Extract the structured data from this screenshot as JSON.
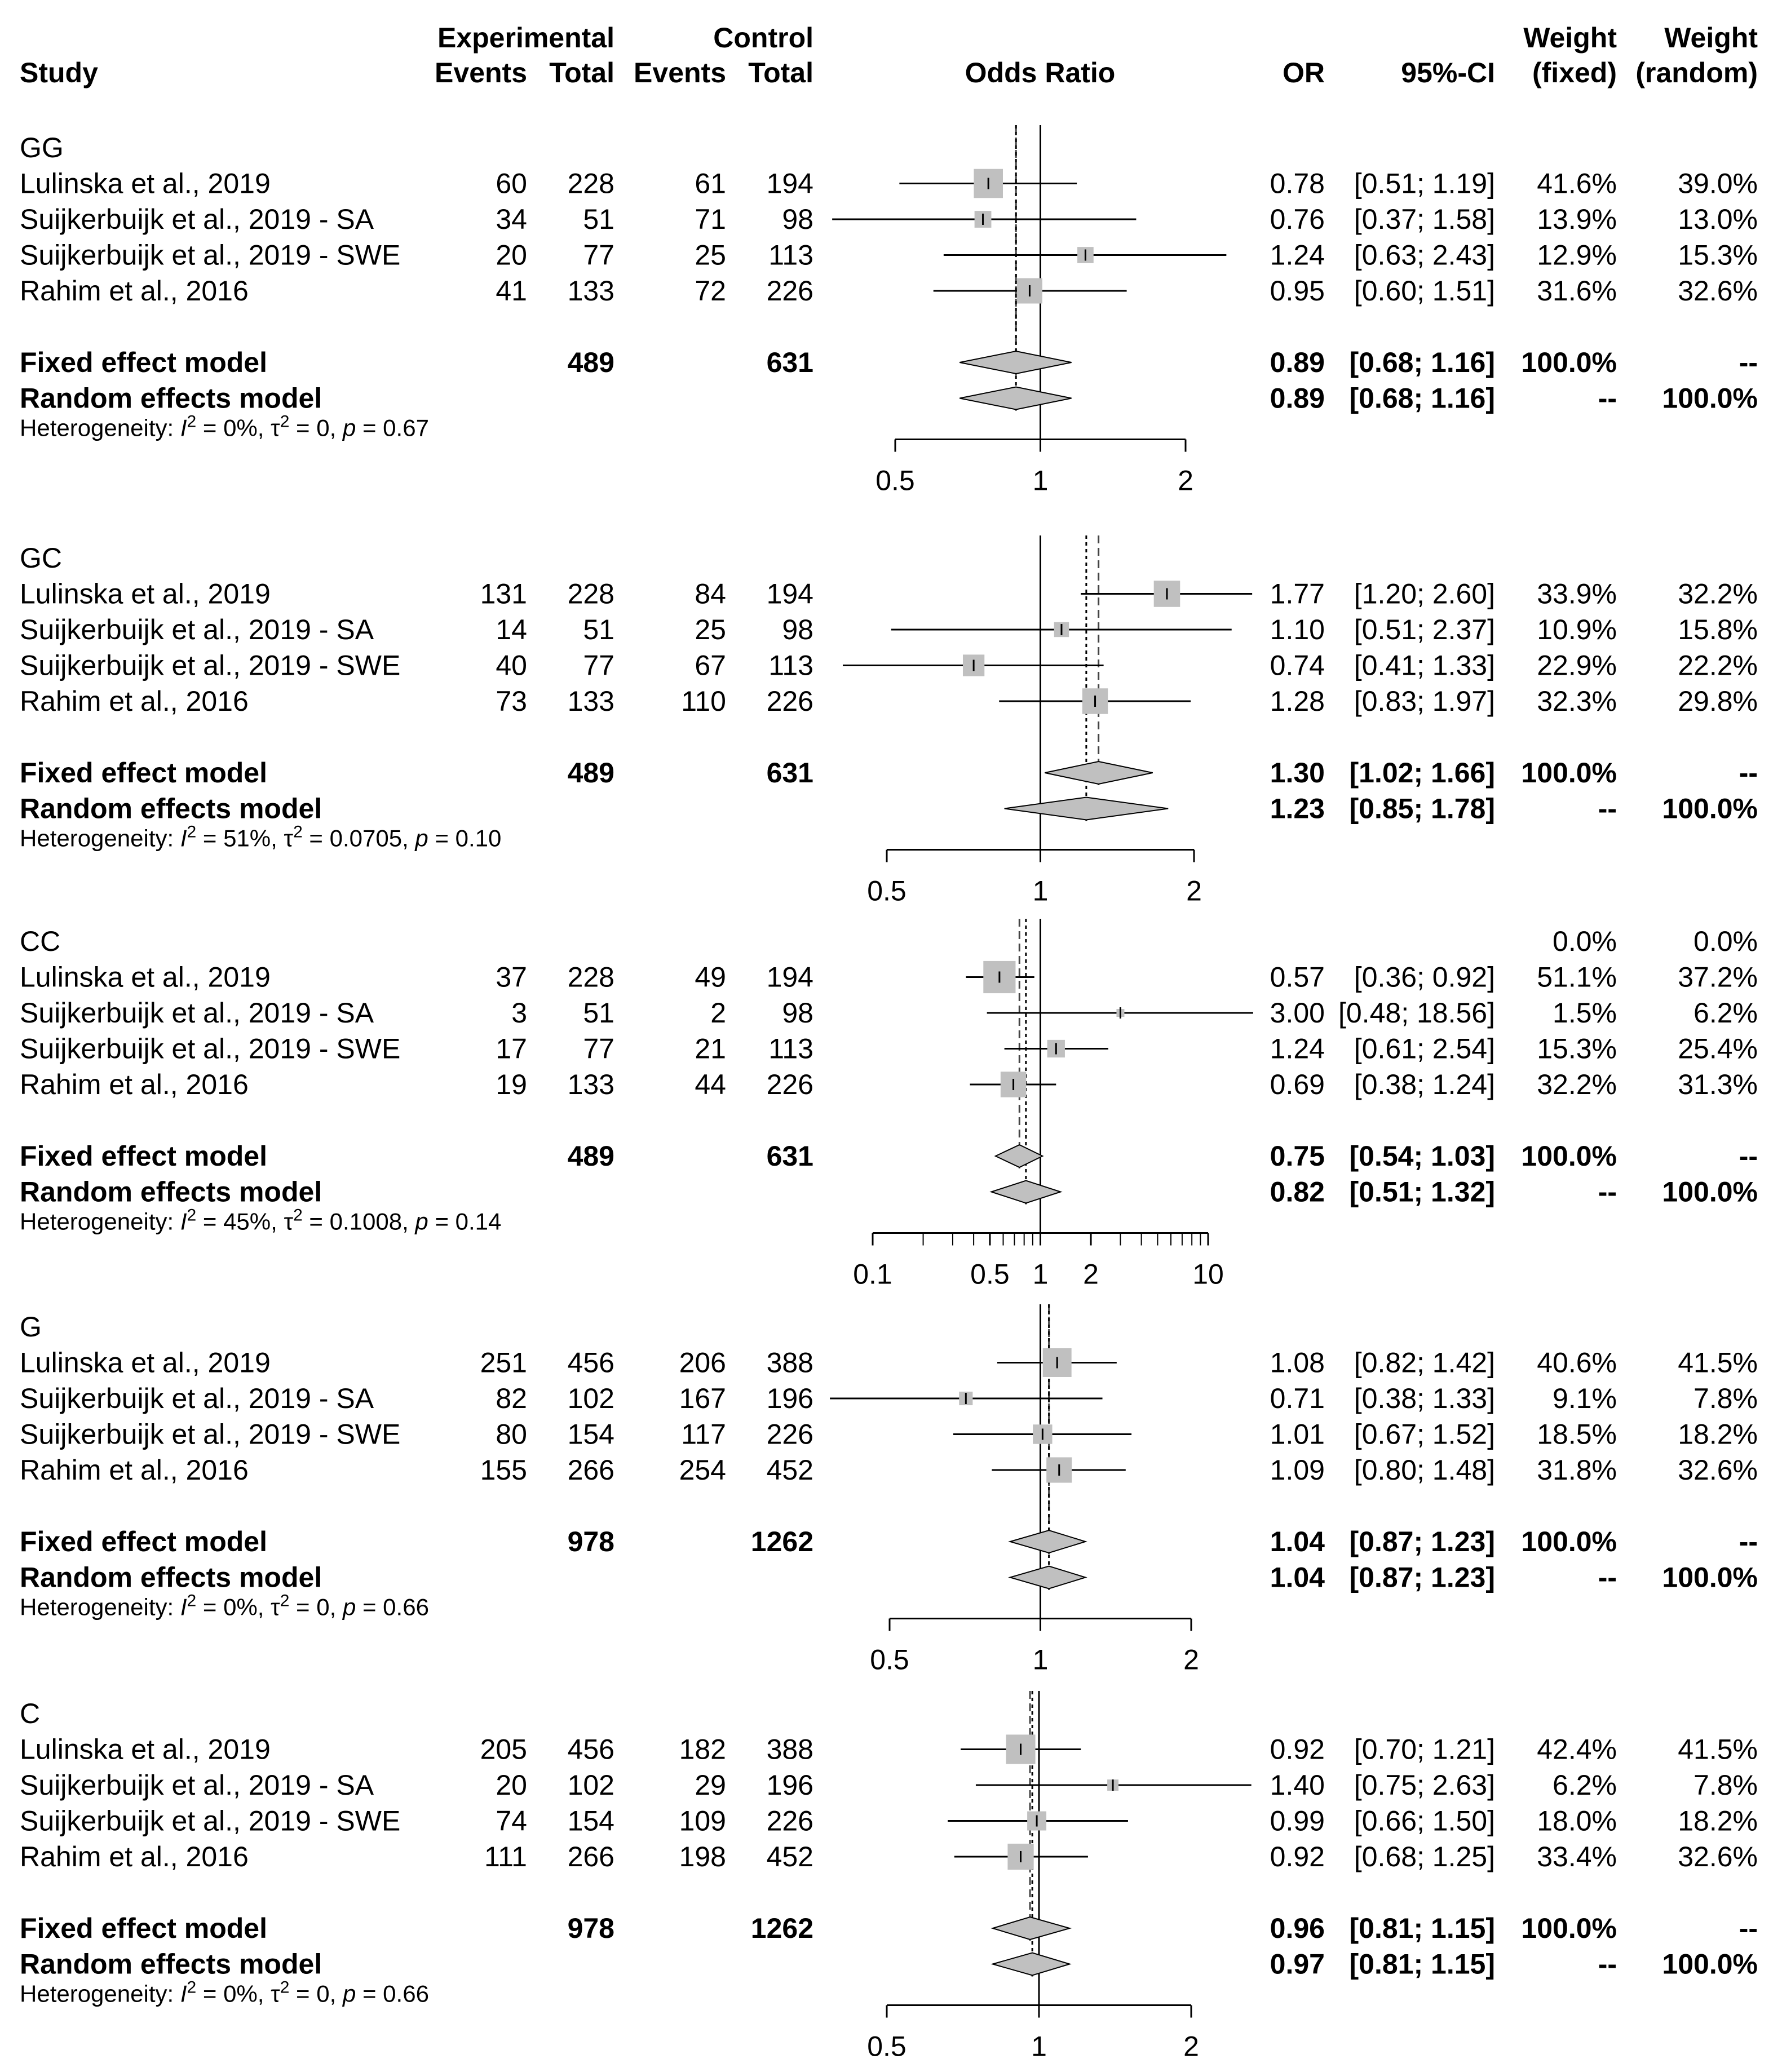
{
  "header": {
    "study": "Study",
    "experimental": "Experimental",
    "control": "Control",
    "events": "Events",
    "total": "Total",
    "odds_ratio": "Odds Ratio",
    "or": "OR",
    "ci": "95%-CI",
    "weight": "Weight",
    "fixed": "(fixed)",
    "random": "(random)"
  },
  "labels": {
    "fixed_model": "Fixed effect model",
    "random_model": "Random effects model"
  },
  "colors": {
    "box": "#c0c0c0",
    "diamond": "#c0c0c0",
    "line": "#000000"
  },
  "chart_data": {
    "type": "forest",
    "scale": "log",
    "groups": [
      {
        "name": "GG",
        "extra_weight_row": null,
        "studies": [
          {
            "study": "Lulinska et al., 2019",
            "e_events": "60",
            "e_total": "228",
            "c_events": "61",
            "c_total": "194",
            "or": 0.78,
            "lo": 0.51,
            "hi": 1.19,
            "or_text": "0.78",
            "ci_text": "[0.51; 1.19]",
            "w_fixed": "41.6%",
            "w_random": "39.0%"
          },
          {
            "study": "Suijkerbuijk et al., 2019 - SA",
            "e_events": "34",
            "e_total": "51",
            "c_events": "71",
            "c_total": "98",
            "or": 0.76,
            "lo": 0.37,
            "hi": 1.58,
            "or_text": "0.76",
            "ci_text": "[0.37; 1.58]",
            "w_fixed": "13.9%",
            "w_random": "13.0%"
          },
          {
            "study": "Suijkerbuijk et al., 2019 - SWE",
            "e_events": "20",
            "e_total": "77",
            "c_events": "25",
            "c_total": "113",
            "or": 1.24,
            "lo": 0.63,
            "hi": 2.43,
            "or_text": "1.24",
            "ci_text": "[0.63; 2.43]",
            "w_fixed": "12.9%",
            "w_random": "15.3%"
          },
          {
            "study": "Rahim et al., 2016",
            "e_events": "41",
            "e_total": "133",
            "c_events": "72",
            "c_total": "226",
            "or": 0.95,
            "lo": 0.6,
            "hi": 1.51,
            "or_text": "0.95",
            "ci_text": "[0.60; 1.51]",
            "w_fixed": "31.6%",
            "w_random": "32.6%"
          }
        ],
        "fixed": {
          "e_total": "489",
          "c_total": "631",
          "or": 0.89,
          "lo": 0.68,
          "hi": 1.16,
          "or_text": "0.89",
          "ci_text": "[0.68; 1.16]",
          "w_fixed": "100.0%",
          "w_random": "--"
        },
        "random": {
          "or": 0.89,
          "lo": 0.68,
          "hi": 1.16,
          "or_text": "0.89",
          "ci_text": "[0.68; 1.16]",
          "w_fixed": "--",
          "w_random": "100.0%"
        },
        "heterogeneity": {
          "i2": "0%",
          "tau2": "0",
          "p": "0.67"
        },
        "axis": {
          "min": 0.4,
          "max": 2.5,
          "ticks": [
            0.5,
            1,
            2
          ],
          "tick_labels": [
            "0.5",
            "1",
            "2"
          ]
        }
      },
      {
        "name": "GC",
        "extra_weight_row": null,
        "studies": [
          {
            "study": "Lulinska et al., 2019",
            "e_events": "131",
            "e_total": "228",
            "c_events": "84",
            "c_total": "194",
            "or": 1.77,
            "lo": 1.2,
            "hi": 2.6,
            "or_text": "1.77",
            "ci_text": "[1.20; 2.60]",
            "w_fixed": "33.9%",
            "w_random": "32.2%"
          },
          {
            "study": "Suijkerbuijk et al., 2019 - SA",
            "e_events": "14",
            "e_total": "51",
            "c_events": "25",
            "c_total": "98",
            "or": 1.1,
            "lo": 0.51,
            "hi": 2.37,
            "or_text": "1.10",
            "ci_text": "[0.51; 2.37]",
            "w_fixed": "10.9%",
            "w_random": "15.8%"
          },
          {
            "study": "Suijkerbuijk et al., 2019 - SWE",
            "e_events": "40",
            "e_total": "77",
            "c_events": "67",
            "c_total": "113",
            "or": 0.74,
            "lo": 0.41,
            "hi": 1.33,
            "or_text": "0.74",
            "ci_text": "[0.41; 1.33]",
            "w_fixed": "22.9%",
            "w_random": "22.2%"
          },
          {
            "study": "Rahim et al., 2016",
            "e_events": "73",
            "e_total": "133",
            "c_events": "110",
            "c_total": "226",
            "or": 1.28,
            "lo": 0.83,
            "hi": 1.97,
            "or_text": "1.28",
            "ci_text": "[0.83; 1.97]",
            "w_fixed": "32.3%",
            "w_random": "29.8%"
          }
        ],
        "fixed": {
          "e_total": "489",
          "c_total": "631",
          "or": 1.3,
          "lo": 1.02,
          "hi": 1.66,
          "or_text": "1.30",
          "ci_text": "[1.02; 1.66]",
          "w_fixed": "100.0%",
          "w_random": "--"
        },
        "random": {
          "or": 1.23,
          "lo": 0.85,
          "hi": 1.78,
          "or_text": "1.23",
          "ci_text": "[0.85; 1.78]",
          "w_fixed": "--",
          "w_random": "100.0%"
        },
        "heterogeneity": {
          "i2": "51%",
          "tau2": "0.0705",
          "p": "0.10"
        },
        "axis": {
          "min": 0.4,
          "max": 2.5,
          "ticks": [
            0.5,
            1,
            2
          ],
          "tick_labels": [
            "0.5",
            "1",
            "2"
          ]
        }
      },
      {
        "name": "CC",
        "extra_weight_row": {
          "w_fixed": "0.0%",
          "w_random": "0.0%"
        },
        "studies": [
          {
            "study": "Lulinska et al., 2019",
            "e_events": "37",
            "e_total": "228",
            "c_events": "49",
            "c_total": "194",
            "or": 0.57,
            "lo": 0.36,
            "hi": 0.92,
            "or_text": "0.57",
            "ci_text": "[0.36;  0.92]",
            "w_fixed": "51.1%",
            "w_random": "37.2%"
          },
          {
            "study": "Suijkerbuijk et al., 2019 - SA",
            "e_events": "3",
            "e_total": "51",
            "c_events": "2",
            "c_total": "98",
            "or": 3.0,
            "lo": 0.48,
            "hi": 18.56,
            "or_text": "3.00",
            "ci_text": "[0.48; 18.56]",
            "w_fixed": "1.5%",
            "w_random": "6.2%"
          },
          {
            "study": "Suijkerbuijk et al., 2019 - SWE",
            "e_events": "17",
            "e_total": "77",
            "c_events": "21",
            "c_total": "113",
            "or": 1.24,
            "lo": 0.61,
            "hi": 2.54,
            "or_text": "1.24",
            "ci_text": "[0.61;  2.54]",
            "w_fixed": "15.3%",
            "w_random": "25.4%"
          },
          {
            "study": "Rahim et al., 2016",
            "e_events": "19",
            "e_total": "133",
            "c_events": "44",
            "c_total": "226",
            "or": 0.69,
            "lo": 0.38,
            "hi": 1.24,
            "or_text": "0.69",
            "ci_text": "[0.38;  1.24]",
            "w_fixed": "32.2%",
            "w_random": "31.3%"
          }
        ],
        "fixed": {
          "e_total": "489",
          "c_total": "631",
          "or": 0.75,
          "lo": 0.54,
          "hi": 1.03,
          "or_text": "0.75",
          "ci_text": "[0.54;  1.03]",
          "w_fixed": "100.0%",
          "w_random": "--"
        },
        "random": {
          "or": 0.82,
          "lo": 0.51,
          "hi": 1.32,
          "or_text": "0.82",
          "ci_text": "[0.51;  1.32]",
          "w_fixed": "--",
          "w_random": "100.0%"
        },
        "heterogeneity": {
          "i2": "45%",
          "tau2": "0.1008",
          "p": "0.14"
        },
        "axis": {
          "min": 0.1,
          "max": 10,
          "ticks": [
            0.1,
            0.5,
            1,
            2,
            10
          ],
          "tick_labels": [
            "0.1",
            "0.5",
            "1",
            "2",
            "10"
          ]
        }
      },
      {
        "name": "G",
        "extra_weight_row": null,
        "studies": [
          {
            "study": "Lulinska et al., 2019",
            "e_events": "251",
            "e_total": "456",
            "c_events": "206",
            "c_total": "388",
            "or": 1.08,
            "lo": 0.82,
            "hi": 1.42,
            "or_text": "1.08",
            "ci_text": "[0.82; 1.42]",
            "w_fixed": "40.6%",
            "w_random": "41.5%"
          },
          {
            "study": "Suijkerbuijk et al., 2019 - SA",
            "e_events": "82",
            "e_total": "102",
            "c_events": "167",
            "c_total": "196",
            "or": 0.71,
            "lo": 0.38,
            "hi": 1.33,
            "or_text": "0.71",
            "ci_text": "[0.38; 1.33]",
            "w_fixed": "9.1%",
            "w_random": "7.8%"
          },
          {
            "study": "Suijkerbuijk et al., 2019 - SWE",
            "e_events": "80",
            "e_total": "154",
            "c_events": "117",
            "c_total": "226",
            "or": 1.01,
            "lo": 0.67,
            "hi": 1.52,
            "or_text": "1.01",
            "ci_text": "[0.67; 1.52]",
            "w_fixed": "18.5%",
            "w_random": "18.2%"
          },
          {
            "study": "Rahim et al., 2016",
            "e_events": "155",
            "e_total": "266",
            "c_events": "254",
            "c_total": "452",
            "or": 1.09,
            "lo": 0.8,
            "hi": 1.48,
            "or_text": "1.09",
            "ci_text": "[0.80; 1.48]",
            "w_fixed": "31.8%",
            "w_random": "32.6%"
          }
        ],
        "fixed": {
          "e_total": "978",
          "c_total": "1262",
          "or": 1.04,
          "lo": 0.87,
          "hi": 1.23,
          "or_text": "1.04",
          "ci_text": "[0.87; 1.23]",
          "w_fixed": "100.0%",
          "w_random": "--"
        },
        "random": {
          "or": 1.04,
          "lo": 0.87,
          "hi": 1.23,
          "or_text": "1.04",
          "ci_text": "[0.87; 1.23]",
          "w_fixed": "--",
          "w_random": "100.0%"
        },
        "heterogeneity": {
          "i2": "0%",
          "tau2": "0",
          "p": "0.66"
        },
        "axis": {
          "min": 0.4,
          "max": 2.5,
          "ticks": [
            0.5,
            1,
            2
          ],
          "tick_labels": [
            "0.5",
            "1",
            "2"
          ]
        }
      },
      {
        "name": "C",
        "extra_weight_row": null,
        "studies": [
          {
            "study": "Lulinska et al., 2019",
            "e_events": "205",
            "e_total": "456",
            "c_events": "182",
            "c_total": "388",
            "or": 0.92,
            "lo": 0.7,
            "hi": 1.21,
            "or_text": "0.92",
            "ci_text": "[0.70; 1.21]",
            "w_fixed": "42.4%",
            "w_random": "41.5%"
          },
          {
            "study": "Suijkerbuijk et al., 2019 - SA",
            "e_events": "20",
            "e_total": "102",
            "c_events": "29",
            "c_total": "196",
            "or": 1.4,
            "lo": 0.75,
            "hi": 2.63,
            "or_text": "1.40",
            "ci_text": "[0.75; 2.63]",
            "w_fixed": "6.2%",
            "w_random": "7.8%"
          },
          {
            "study": "Suijkerbuijk et al., 2019 - SWE",
            "e_events": "74",
            "e_total": "154",
            "c_events": "109",
            "c_total": "226",
            "or": 0.99,
            "lo": 0.66,
            "hi": 1.5,
            "or_text": "0.99",
            "ci_text": "[0.66; 1.50]",
            "w_fixed": "18.0%",
            "w_random": "18.2%"
          },
          {
            "study": "Rahim et al., 2016",
            "e_events": "111",
            "e_total": "266",
            "c_events": "198",
            "c_total": "452",
            "or": 0.92,
            "lo": 0.68,
            "hi": 1.25,
            "or_text": "0.92",
            "ci_text": "[0.68; 1.25]",
            "w_fixed": "33.4%",
            "w_random": "32.6%"
          }
        ],
        "fixed": {
          "e_total": "978",
          "c_total": "1262",
          "or": 0.96,
          "lo": 0.81,
          "hi": 1.15,
          "or_text": "0.96",
          "ci_text": "[0.81; 1.15]",
          "w_fixed": "100.0%",
          "w_random": "--"
        },
        "random": {
          "or": 0.97,
          "lo": 0.81,
          "hi": 1.15,
          "or_text": "0.97",
          "ci_text": "[0.81; 1.15]",
          "w_fixed": "--",
          "w_random": "100.0%"
        },
        "heterogeneity": {
          "i2": "0%",
          "tau2": "0",
          "p": "0.66"
        },
        "axis": {
          "min": 0.4,
          "max": 2.5,
          "ticks": [
            0.5,
            1,
            2
          ],
          "tick_labels": [
            "0.5",
            "1",
            "2"
          ]
        }
      }
    ]
  }
}
